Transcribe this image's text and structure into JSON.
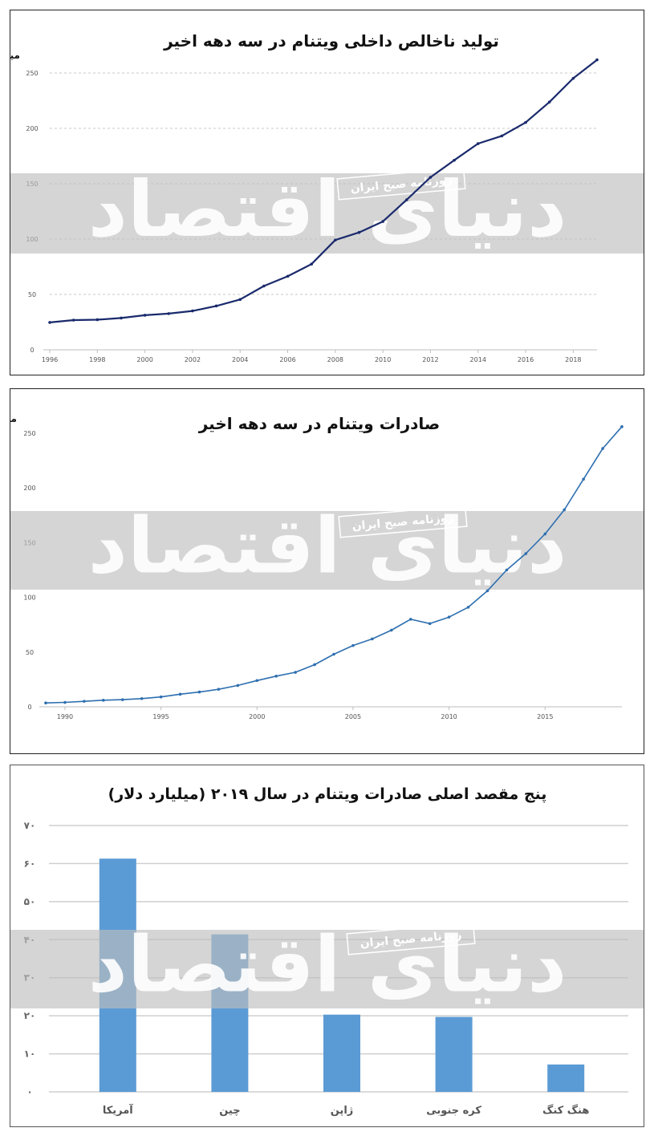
{
  "watermark": {
    "brand": "دنیای اقتصاد",
    "tagline": "روزنامه صبح ایران"
  },
  "chart_data": [
    {
      "type": "line",
      "title": "تولید ناخالص داخلی ویتنام در سه دهه اخیر",
      "ylabel": "میلیارد دلار",
      "ylim": [
        0,
        250
      ],
      "yticks": [
        "0",
        "50",
        "100",
        "150",
        "200",
        "250"
      ],
      "xlim": [
        1996,
        2019
      ],
      "xticks": [
        "1996",
        "1998",
        "2000",
        "2002",
        "2004",
        "2006",
        "2008",
        "2010",
        "2012",
        "2014",
        "2016",
        "2018"
      ],
      "grid": true,
      "color": "#1a2a6c",
      "series": [
        {
          "x": [
            1996,
            1997,
            1998,
            1999,
            2000,
            2001,
            2002,
            2003,
            2004,
            2005,
            2006,
            2007,
            2008,
            2009,
            2010,
            2011,
            2012,
            2013,
            2014,
            2015,
            2016,
            2017,
            2018,
            2019
          ],
          "values": [
            24.7,
            26.8,
            27.2,
            28.7,
            31.2,
            32.7,
            35.1,
            39.6,
            45.4,
            57.6,
            66.4,
            77.4,
            99.1,
            106.0,
            115.9,
            135.5,
            155.8,
            171.2,
            186.2,
            193.2,
            205.3,
            223.8,
            245.2,
            261.9
          ]
        }
      ]
    },
    {
      "type": "line",
      "title": "صادرات ویتنام در سه دهه اخیر",
      "ylabel": "میلیارد دلار",
      "ylim": [
        0,
        250
      ],
      "yticks": [
        "0",
        "50",
        "100",
        "150",
        "200",
        "250"
      ],
      "xlim": [
        1989,
        2019
      ],
      "xticks": [
        "1990",
        "1995",
        "2000",
        "2005",
        "2010",
        "2015"
      ],
      "grid": false,
      "color": "#2e6fb0",
      "series": [
        {
          "x": [
            1989,
            1990,
            1991,
            1992,
            1993,
            1994,
            1995,
            1996,
            1997,
            1998,
            1999,
            2000,
            2001,
            2002,
            2003,
            2004,
            2005,
            2006,
            2007,
            2008,
            2009,
            2010,
            2011,
            2012,
            2013,
            2014,
            2015,
            2016,
            2017,
            2018,
            2019
          ],
          "values": [
            3.5,
            4.0,
            5.0,
            6.0,
            6.5,
            7.5,
            9.0,
            11.5,
            13.5,
            16.0,
            19.5,
            24.0,
            28.0,
            31.5,
            38.5,
            48.0,
            56.0,
            62.0,
            70.0,
            80.0,
            76.0,
            82.0,
            91.0,
            106.0,
            125.0,
            140.0,
            158.0,
            180.0,
            208.0,
            236.0,
            256.0
          ]
        }
      ]
    },
    {
      "type": "bar",
      "title": "پنج مقصد اصلی صادرات ویتنام در سال ۲۰۱۹ (میلیارد دلار)",
      "ylim": [
        0,
        70
      ],
      "yticks": [
        "۰",
        "۱۰",
        "۲۰",
        "۳۰",
        "۴۰",
        "۵۰",
        "۶۰",
        "۷۰"
      ],
      "categories": [
        "آمریکا",
        "چین",
        "ژاپن",
        "کره جنوبی",
        "هنگ کنگ"
      ],
      "values": [
        61.3,
        41.4,
        20.3,
        19.7,
        7.2
      ],
      "color": "#5b9bd5"
    }
  ]
}
